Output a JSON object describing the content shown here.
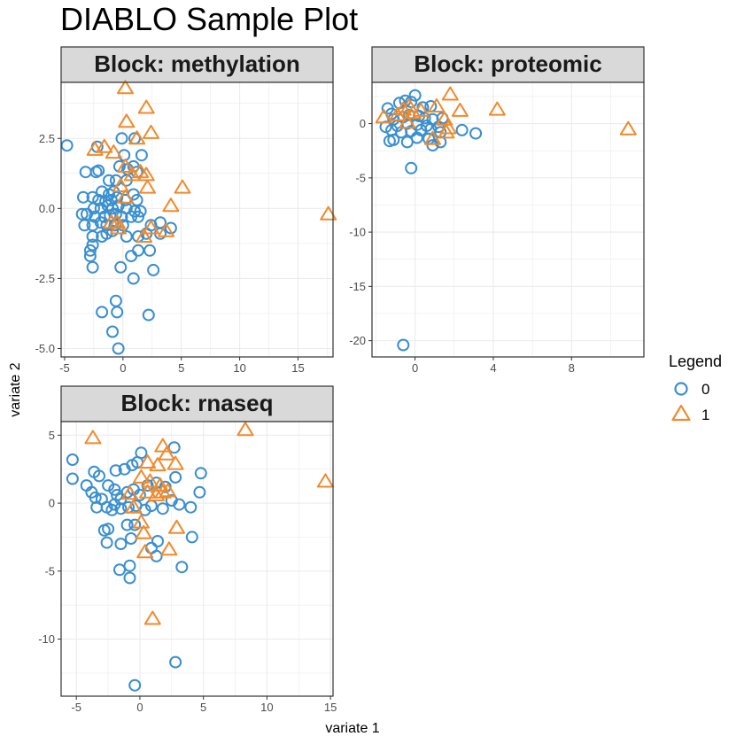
{
  "chart_data": {
    "type": "scatter",
    "title": "DIABLO Sample Plot",
    "xlabel": "variate 1",
    "ylabel": "variate 2",
    "legend": {
      "title": "Legend",
      "position": "right",
      "entries": [
        {
          "label": "0",
          "shape": "circle",
          "color": "#3a8fd0"
        },
        {
          "label": "1",
          "shape": "triangle",
          "color": "#f08a2c"
        }
      ]
    },
    "colors": {
      "group0": "#3a8fd0",
      "group1": "#f08a2c",
      "strip_fill": "#d9d9d9",
      "grid": "#ebebeb",
      "panel_border": "#333333"
    },
    "grid": true,
    "panels": [
      {
        "name": "Block: methylation",
        "xlim": [
          -5.3,
          18.0
        ],
        "ylim": [
          -5.3,
          4.5
        ],
        "xticks": [
          -5,
          0,
          5,
          10,
          15
        ],
        "yticks": [
          -5.0,
          -2.5,
          0.0,
          2.5
        ],
        "ytick_labels": [
          "-5.0",
          "-2.5",
          "0.0",
          "2.5"
        ],
        "group0": [
          [
            -4.8,
            2.25
          ],
          [
            -2.2,
            2.2
          ],
          [
            -3.2,
            1.3
          ],
          [
            -2.3,
            1.3
          ],
          [
            -2.1,
            1.35
          ],
          [
            -0.1,
            2.5
          ],
          [
            1.0,
            2.5
          ],
          [
            0.1,
            1.9
          ],
          [
            1.6,
            1.9
          ],
          [
            -0.3,
            1.5
          ],
          [
            0.4,
            1.4
          ],
          [
            0.9,
            1.5
          ],
          [
            1.2,
            1.3
          ],
          [
            -1.2,
            1.0
          ],
          [
            -0.6,
            1.0
          ],
          [
            0.3,
            1.0
          ],
          [
            -1.8,
            0.6
          ],
          [
            -1.2,
            0.5
          ],
          [
            -0.8,
            0.6
          ],
          [
            -3.4,
            0.4
          ],
          [
            -2.6,
            0.4
          ],
          [
            -2.1,
            0.3
          ],
          [
            -1.5,
            0.25
          ],
          [
            -1.0,
            0.3
          ],
          [
            -0.5,
            0.4
          ],
          [
            0.2,
            0.3
          ],
          [
            0.9,
            0.5
          ],
          [
            1.2,
            0.3
          ],
          [
            -2.5,
            0.0
          ],
          [
            -1.9,
            0.0
          ],
          [
            -1.3,
            0.1
          ],
          [
            -0.9,
            0.0
          ],
          [
            -0.4,
            0.1
          ],
          [
            0.3,
            0.0
          ],
          [
            1.0,
            -0.1
          ],
          [
            1.5,
            -0.1
          ],
          [
            -3.5,
            -0.2
          ],
          [
            -3.1,
            -0.2
          ],
          [
            -2.4,
            -0.3
          ],
          [
            -1.6,
            -0.3
          ],
          [
            -1.1,
            -0.25
          ],
          [
            -0.6,
            -0.2
          ],
          [
            -0.1,
            -0.3
          ],
          [
            0.7,
            -0.3
          ],
          [
            1.3,
            -0.3
          ],
          [
            -3.3,
            -0.6
          ],
          [
            -2.6,
            -0.6
          ],
          [
            -1.9,
            -0.5
          ],
          [
            -1.4,
            -0.6
          ],
          [
            -0.7,
            -0.6
          ],
          [
            0.0,
            -0.6
          ],
          [
            2.4,
            -0.6
          ],
          [
            3.2,
            -0.5
          ],
          [
            4.1,
            -0.7
          ],
          [
            -2.6,
            -1.0
          ],
          [
            -1.8,
            -1.0
          ],
          [
            -1.4,
            -0.9
          ],
          [
            -0.9,
            -0.8
          ],
          [
            0.3,
            -1.0
          ],
          [
            1.3,
            -1.0
          ],
          [
            2.0,
            -0.9
          ],
          [
            3.2,
            -0.9
          ],
          [
            -2.6,
            -1.3
          ],
          [
            -2.8,
            -1.5
          ],
          [
            -2.8,
            -1.7
          ],
          [
            0.7,
            -1.7
          ],
          [
            1.3,
            -1.5
          ],
          [
            2.3,
            -1.5
          ],
          [
            -2.6,
            -2.1
          ],
          [
            -0.2,
            -2.1
          ],
          [
            0.9,
            -2.5
          ],
          [
            2.6,
            -2.2
          ],
          [
            -0.6,
            -3.3
          ],
          [
            -1.8,
            -3.7
          ],
          [
            -0.5,
            -3.7
          ],
          [
            2.2,
            -3.8
          ],
          [
            -0.9,
            -4.4
          ],
          [
            -0.4,
            -5.0
          ]
        ],
        "group1": [
          [
            0.2,
            4.3
          ],
          [
            2.0,
            3.6
          ],
          [
            0.3,
            3.1
          ],
          [
            2.4,
            2.7
          ],
          [
            -2.4,
            2.1
          ],
          [
            -1.6,
            2.2
          ],
          [
            -0.8,
            2.0
          ],
          [
            1.2,
            2.5
          ],
          [
            0.2,
            1.5
          ],
          [
            1.5,
            1.3
          ],
          [
            0.8,
            1.2
          ],
          [
            2.0,
            1.2
          ],
          [
            -0.2,
            0.8
          ],
          [
            2.1,
            0.75
          ],
          [
            5.1,
            0.75
          ],
          [
            0.2,
            0.4
          ],
          [
            4.1,
            0.1
          ],
          [
            -1.0,
            -0.5
          ],
          [
            -0.5,
            -0.5
          ],
          [
            -0.4,
            -0.7
          ],
          [
            3.7,
            -0.8
          ],
          [
            2.4,
            -0.7
          ],
          [
            1.8,
            -1.0
          ],
          [
            17.6,
            -0.2
          ]
        ]
      },
      {
        "name": "Block: proteomic",
        "xlim": [
          -2.2,
          11.7
        ],
        "ylim": [
          -21.5,
          3.8
        ],
        "xticks": [
          0,
          4,
          8
        ],
        "yticks": [
          -20,
          -15,
          -10,
          -5,
          0
        ],
        "ytick_labels": [
          "-20",
          "-15",
          "-10",
          "-5",
          "0"
        ],
        "group0": [
          [
            -1.4,
            1.4
          ],
          [
            -1.2,
            0.9
          ],
          [
            -0.8,
            1.9
          ],
          [
            -0.5,
            2.1
          ],
          [
            -0.2,
            2.0
          ],
          [
            0.0,
            2.6
          ],
          [
            0.4,
            1.5
          ],
          [
            0.8,
            1.6
          ],
          [
            -1.1,
            0.4
          ],
          [
            -0.6,
            0.6
          ],
          [
            -0.3,
            0.8
          ],
          [
            0.2,
            0.7
          ],
          [
            0.5,
            0.5
          ],
          [
            0.9,
            0.4
          ],
          [
            1.4,
            0.5
          ],
          [
            -1.5,
            -0.3
          ],
          [
            -0.9,
            -0.2
          ],
          [
            -0.4,
            0.0
          ],
          [
            0.1,
            -0.1
          ],
          [
            0.6,
            -0.2
          ],
          [
            1.2,
            -0.3
          ],
          [
            -1.2,
            -0.6
          ],
          [
            -0.7,
            -0.8
          ],
          [
            -0.2,
            -0.7
          ],
          [
            0.3,
            -0.6
          ],
          [
            0.8,
            -0.5
          ],
          [
            1.3,
            -0.8
          ],
          [
            -1.3,
            -1.6
          ],
          [
            -1.1,
            -1.5
          ],
          [
            -0.4,
            -1.7
          ],
          [
            0.1,
            -1.3
          ],
          [
            0.7,
            -1.4
          ],
          [
            0.9,
            -2.0
          ],
          [
            1.3,
            -1.7
          ],
          [
            2.4,
            -0.6
          ],
          [
            3.1,
            -0.9
          ],
          [
            -0.2,
            -4.1
          ],
          [
            -0.6,
            -20.4
          ]
        ],
        "group1": [
          [
            -1.6,
            0.6
          ],
          [
            -0.9,
            0.8
          ],
          [
            -0.6,
            1.3
          ],
          [
            -0.3,
            1.6
          ],
          [
            -0.1,
            1.0
          ],
          [
            0.3,
            1.2
          ],
          [
            1.1,
            1.6
          ],
          [
            1.8,
            2.7
          ],
          [
            2.3,
            1.2
          ],
          [
            4.2,
            1.3
          ],
          [
            1.5,
            0.4
          ],
          [
            1.7,
            -0.4
          ],
          [
            1.6,
            -0.8
          ],
          [
            0.9,
            -1.4
          ],
          [
            -0.4,
            0.1
          ],
          [
            10.9,
            -0.5
          ]
        ]
      },
      {
        "name": "Block: rnaseq",
        "xlim": [
          -6.2,
          15.2
        ],
        "ylim": [
          -14.2,
          6.0
        ],
        "xticks": [
          -5,
          0,
          5,
          10,
          15
        ],
        "yticks": [
          -10,
          -5,
          0,
          5
        ],
        "ytick_labels": [
          "-10",
          "-5",
          "0",
          "5"
        ],
        "group0": [
          [
            -5.3,
            3.2
          ],
          [
            -5.3,
            1.8
          ],
          [
            -4.2,
            1.3
          ],
          [
            -3.6,
            2.3
          ],
          [
            -3.2,
            2.0
          ],
          [
            -3.8,
            0.8
          ],
          [
            -3.5,
            0.4
          ],
          [
            -3.0,
            0.3
          ],
          [
            -3.4,
            -0.3
          ],
          [
            -2.6,
            -0.3
          ],
          [
            -2.2,
            -0.5
          ],
          [
            -1.9,
            2.4
          ],
          [
            -1.2,
            2.5
          ],
          [
            -0.6,
            2.8
          ],
          [
            -0.2,
            3.0
          ],
          [
            0.1,
            3.7
          ],
          [
            -2.5,
            1.3
          ],
          [
            -2.0,
            1.0
          ],
          [
            -1.8,
            0.6
          ],
          [
            -1.5,
            0.3
          ],
          [
            -1.0,
            0.8
          ],
          [
            -0.5,
            1.0
          ],
          [
            0.0,
            0.6
          ],
          [
            0.6,
            1.3
          ],
          [
            1.3,
            1.5
          ],
          [
            2.0,
            1.2
          ],
          [
            2.8,
            1.9
          ],
          [
            -2.0,
            -0.1
          ],
          [
            -1.5,
            -0.4
          ],
          [
            -0.9,
            -0.3
          ],
          [
            -0.3,
            -0.2
          ],
          [
            0.4,
            -0.5
          ],
          [
            0.9,
            -0.2
          ],
          [
            1.8,
            -0.4
          ],
          [
            2.5,
            0.2
          ],
          [
            3.1,
            -0.1
          ],
          [
            4.0,
            -0.3
          ],
          [
            4.7,
            0.8
          ],
          [
            4.8,
            2.2
          ],
          [
            2.7,
            4.1
          ],
          [
            -1.0,
            -1.6
          ],
          [
            -0.4,
            -1.6
          ],
          [
            -2.8,
            -2.0
          ],
          [
            -2.5,
            -1.9
          ],
          [
            -1.5,
            -3.0
          ],
          [
            -2.6,
            -2.9
          ],
          [
            -0.7,
            -2.6
          ],
          [
            1.4,
            -2.8
          ],
          [
            0.9,
            -3.3
          ],
          [
            1.3,
            -3.9
          ],
          [
            4.1,
            -2.5
          ],
          [
            3.3,
            -4.7
          ],
          [
            -1.6,
            -4.9
          ],
          [
            -0.8,
            -4.6
          ],
          [
            -0.8,
            -5.5
          ],
          [
            2.8,
            -11.7
          ],
          [
            -0.4,
            -13.4
          ]
        ],
        "group1": [
          [
            -3.7,
            4.8
          ],
          [
            1.8,
            4.2
          ],
          [
            2.1,
            3.6
          ],
          [
            1.4,
            2.8
          ],
          [
            0.6,
            3.0
          ],
          [
            2.8,
            2.9
          ],
          [
            0.1,
            1.9
          ],
          [
            0.8,
            1.6
          ],
          [
            1.6,
            1.3
          ],
          [
            0.6,
            0.8
          ],
          [
            1.3,
            0.6
          ],
          [
            2.2,
            0.9
          ],
          [
            1.8,
            0.8
          ],
          [
            -0.8,
            0.7
          ],
          [
            -0.5,
            -0.3
          ],
          [
            0.1,
            -1.4
          ],
          [
            0.3,
            -2.2
          ],
          [
            2.9,
            -1.8
          ],
          [
            2.3,
            -3.4
          ],
          [
            0.4,
            -3.6
          ],
          [
            1.0,
            -8.5
          ],
          [
            8.3,
            5.4
          ],
          [
            14.6,
            1.6
          ]
        ]
      }
    ]
  }
}
